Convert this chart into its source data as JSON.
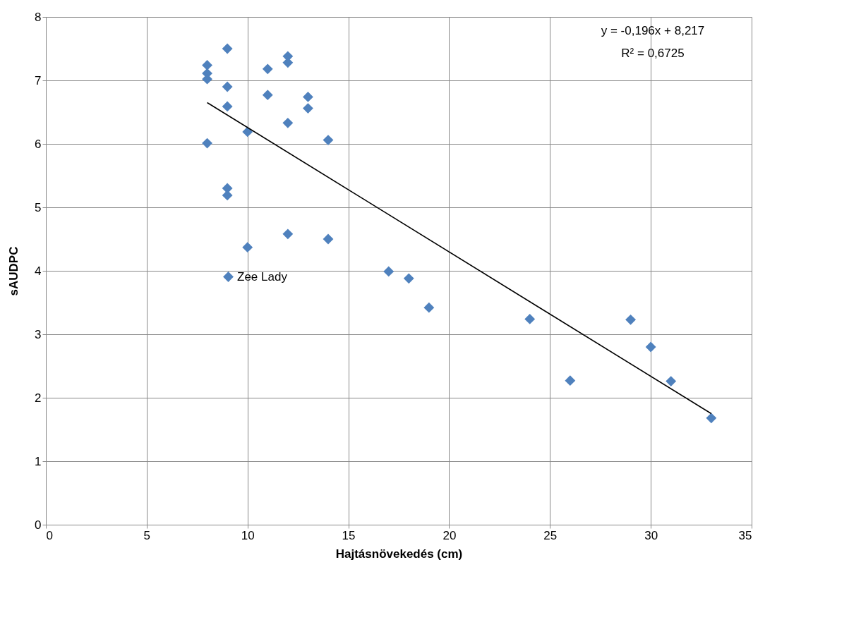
{
  "chart_data": {
    "type": "scatter",
    "xlabel": "Hajtásnövekedés (cm)",
    "ylabel": "sAUDPC",
    "xlim": [
      0,
      35
    ],
    "xticks": [
      0,
      5,
      10,
      15,
      20,
      25,
      30,
      35
    ],
    "ylim": [
      0,
      8
    ],
    "yticks": [
      0,
      1,
      2,
      3,
      4,
      5,
      6,
      7,
      8
    ],
    "grid": true,
    "legend": "left",
    "marker": "diamond",
    "annotations": [
      "y = -0,196x + 8,217",
      "R² = 0,6725"
    ],
    "series": [
      {
        "name": "Zee Lady",
        "color": "#4f81bd",
        "x": [
          8,
          8,
          8,
          8,
          9,
          9,
          9,
          9,
          9,
          10,
          10,
          11,
          11,
          12,
          12,
          12,
          12,
          13,
          13,
          14,
          14,
          17,
          18,
          19,
          24,
          26,
          29,
          30,
          31,
          33
        ],
        "values": [
          7.24,
          7.11,
          7.02,
          6.01,
          7.5,
          6.9,
          6.59,
          5.3,
          5.19,
          6.19,
          4.37,
          7.18,
          6.77,
          7.38,
          7.28,
          6.33,
          4.58,
          6.74,
          6.56,
          6.06,
          4.5,
          3.99,
          3.88,
          3.42,
          3.24,
          2.27,
          3.23,
          2.8,
          2.26,
          1.68
        ]
      },
      {
        "type": "line",
        "color": "#000000",
        "marker": "none",
        "x": [
          8,
          33
        ],
        "values": [
          6.65,
          1.75
        ]
      }
    ]
  }
}
